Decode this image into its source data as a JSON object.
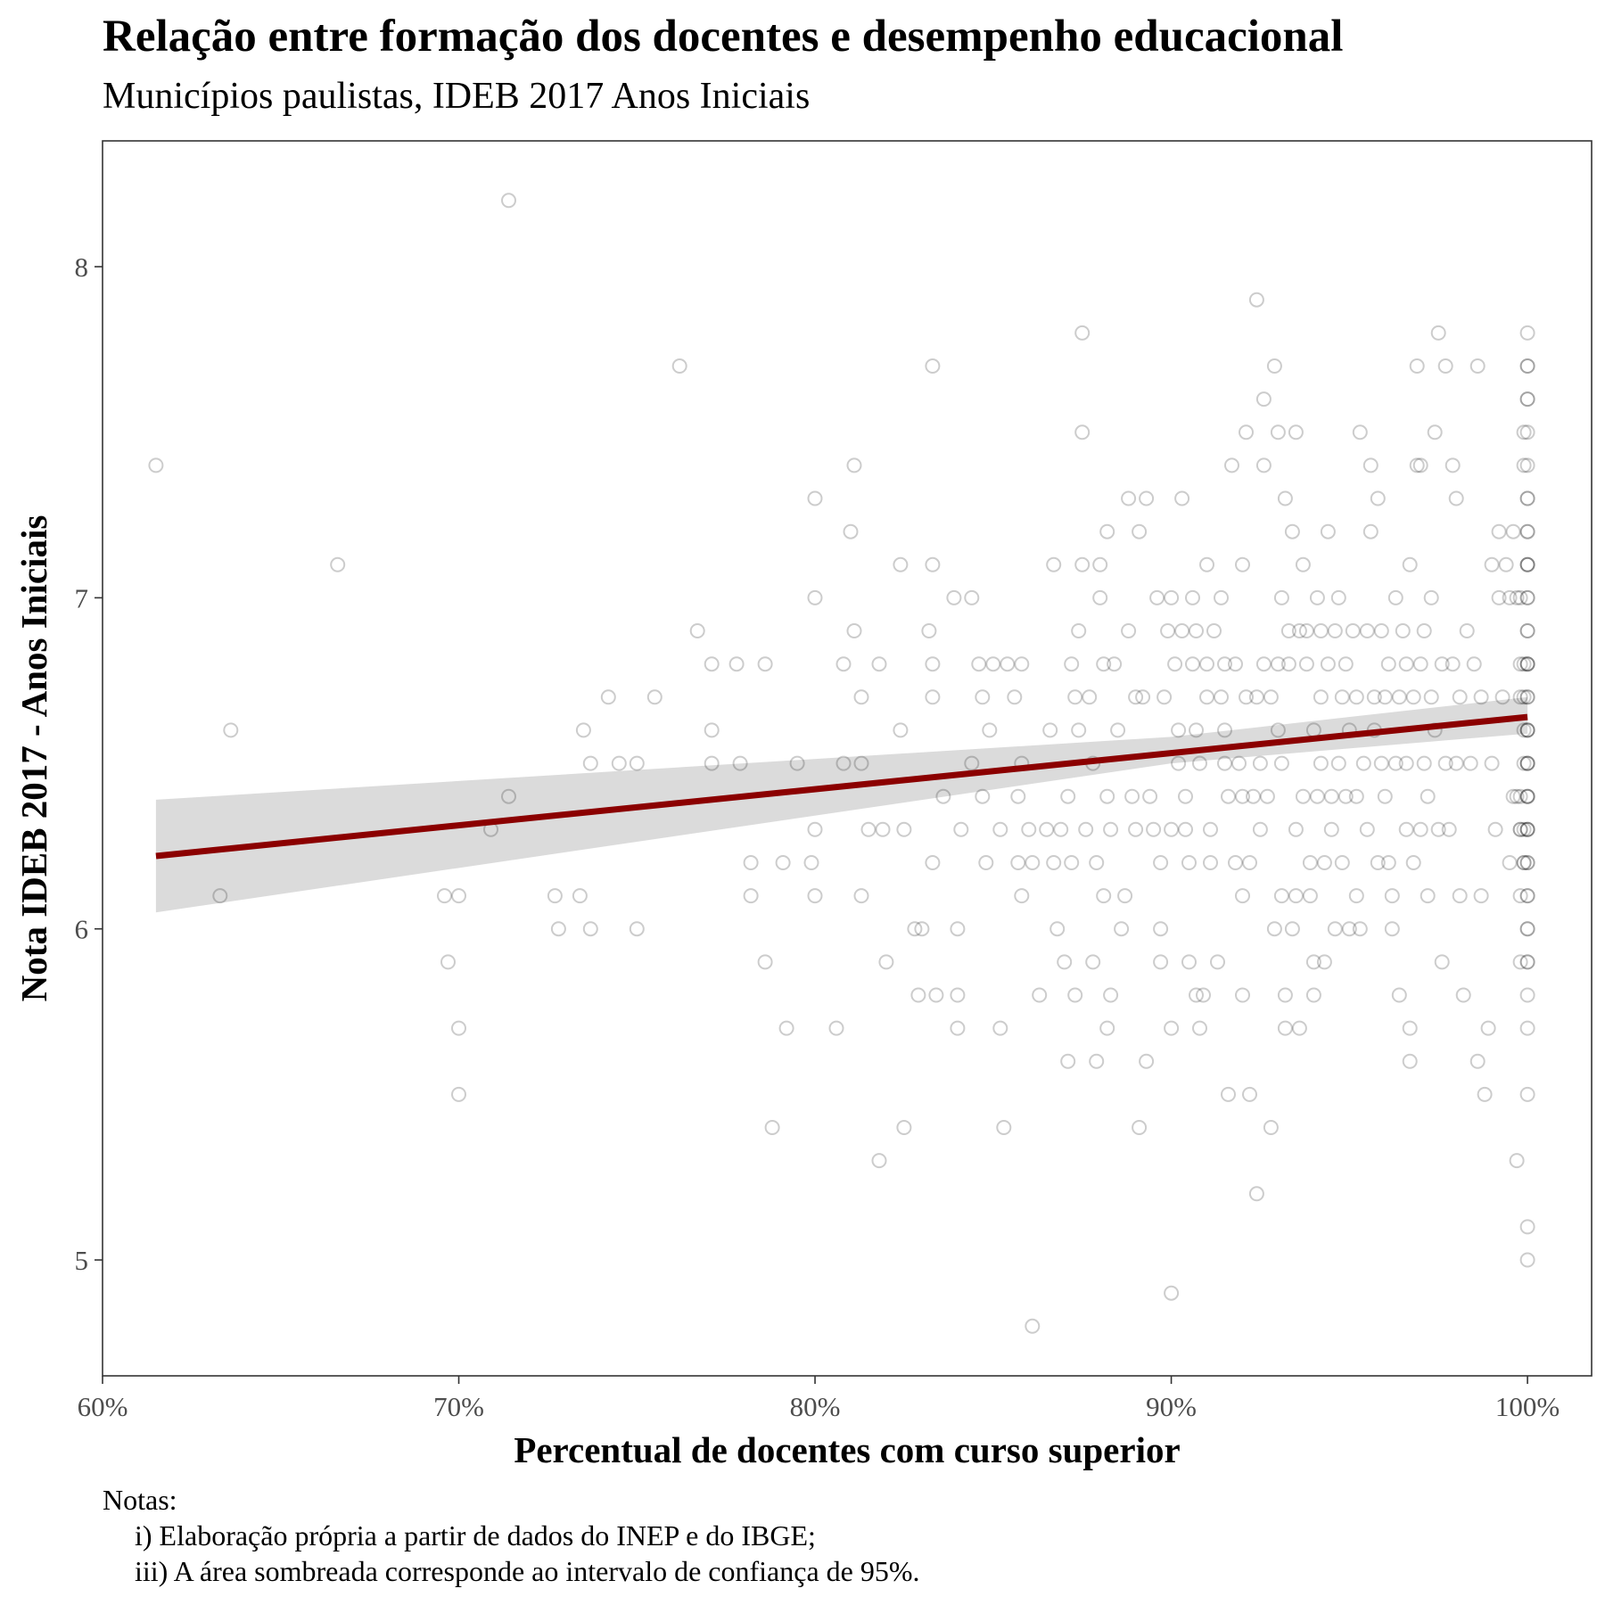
{
  "chart_data": {
    "type": "scatter",
    "title": "Relação entre formação dos docentes e desempenho educacional",
    "subtitle": "Municípios paulistas, IDEB 2017 Anos Iniciais",
    "xlabel": "Percentual de docentes com curso superior",
    "ylabel": "Nota IDEB 2017 - Anos Iniciais",
    "xlim": [
      0.6,
      1.018
    ],
    "ylim": [
      4.65,
      8.38
    ],
    "x_ticks": [
      0.6,
      0.7,
      0.8,
      0.9,
      1.0
    ],
    "x_tick_labels": [
      "60%",
      "70%",
      "80%",
      "90%",
      "100%"
    ],
    "y_ticks": [
      5,
      6,
      7,
      8
    ],
    "y_tick_labels": [
      "5",
      "6",
      "7",
      "8"
    ],
    "grid": false,
    "legend": "none",
    "point_style": "hollow circle, grey, semi-transparent",
    "points": [
      [
        0.615,
        7.4
      ],
      [
        0.633,
        6.1
      ],
      [
        0.636,
        6.6
      ],
      [
        0.666,
        7.1
      ],
      [
        0.714,
        8.2
      ],
      [
        0.714,
        6.4
      ],
      [
        0.709,
        6.3
      ],
      [
        0.696,
        6.1
      ],
      [
        0.7,
        6.1
      ],
      [
        0.697,
        5.9
      ],
      [
        0.7,
        5.7
      ],
      [
        0.7,
        5.5
      ],
      [
        0.727,
        6.1
      ],
      [
        0.728,
        6.0
      ],
      [
        0.734,
        6.1
      ],
      [
        0.735,
        6.6
      ],
      [
        0.737,
        6.5
      ],
      [
        0.737,
        6.0
      ],
      [
        0.742,
        6.7
      ],
      [
        0.745,
        6.5
      ],
      [
        0.75,
        6.5
      ],
      [
        0.75,
        6.0
      ],
      [
        0.755,
        6.7
      ],
      [
        0.762,
        7.7
      ],
      [
        0.767,
        6.9
      ],
      [
        0.771,
        6.8
      ],
      [
        0.771,
        6.6
      ],
      [
        0.771,
        6.5
      ],
      [
        0.778,
        6.8
      ],
      [
        0.779,
        6.5
      ],
      [
        0.782,
        6.2
      ],
      [
        0.782,
        6.1
      ],
      [
        0.786,
        5.9
      ],
      [
        0.786,
        6.8
      ],
      [
        0.788,
        5.4
      ],
      [
        0.791,
        6.2
      ],
      [
        0.792,
        5.7
      ],
      [
        0.795,
        6.5
      ],
      [
        0.799,
        6.2
      ],
      [
        0.8,
        7.3
      ],
      [
        0.8,
        7.0
      ],
      [
        0.8,
        6.3
      ],
      [
        0.8,
        6.1
      ],
      [
        0.806,
        5.7
      ],
      [
        0.808,
        6.8
      ],
      [
        0.808,
        6.5
      ],
      [
        0.81,
        7.2
      ],
      [
        0.811,
        7.4
      ],
      [
        0.811,
        6.9
      ],
      [
        0.813,
        6.7
      ],
      [
        0.813,
        6.5
      ],
      [
        0.813,
        6.1
      ],
      [
        0.815,
        6.3
      ],
      [
        0.818,
        5.3
      ],
      [
        0.818,
        6.8
      ],
      [
        0.819,
        6.3
      ],
      [
        0.82,
        5.9
      ],
      [
        0.824,
        7.1
      ],
      [
        0.824,
        6.6
      ],
      [
        0.825,
        6.3
      ],
      [
        0.825,
        5.4
      ],
      [
        0.828,
        6.0
      ],
      [
        0.829,
        5.8
      ],
      [
        0.83,
        6.0
      ],
      [
        0.832,
        6.9
      ],
      [
        0.833,
        6.8
      ],
      [
        0.833,
        7.7
      ],
      [
        0.833,
        7.1
      ],
      [
        0.833,
        6.7
      ],
      [
        0.833,
        6.2
      ],
      [
        0.834,
        5.8
      ],
      [
        0.836,
        6.4
      ],
      [
        0.839,
        7.0
      ],
      [
        0.84,
        6.0
      ],
      [
        0.84,
        5.8
      ],
      [
        0.84,
        5.7
      ],
      [
        0.841,
        6.3
      ],
      [
        0.844,
        7.0
      ],
      [
        0.844,
        6.5
      ],
      [
        0.846,
        6.8
      ],
      [
        0.847,
        6.7
      ],
      [
        0.847,
        6.4
      ],
      [
        0.848,
        6.2
      ],
      [
        0.849,
        6.6
      ],
      [
        0.85,
        6.8
      ],
      [
        0.852,
        6.3
      ],
      [
        0.852,
        5.7
      ],
      [
        0.853,
        5.4
      ],
      [
        0.854,
        6.8
      ],
      [
        0.856,
        6.7
      ],
      [
        0.857,
        6.4
      ],
      [
        0.857,
        6.2
      ],
      [
        0.858,
        6.1
      ],
      [
        0.858,
        6.5
      ],
      [
        0.858,
        6.8
      ],
      [
        0.86,
        6.3
      ],
      [
        0.861,
        6.2
      ],
      [
        0.861,
        4.8
      ],
      [
        0.863,
        5.8
      ],
      [
        0.865,
        6.3
      ],
      [
        0.866,
        6.6
      ],
      [
        0.867,
        6.2
      ],
      [
        0.867,
        7.1
      ],
      [
        0.868,
        6.0
      ],
      [
        0.869,
        6.3
      ],
      [
        0.87,
        5.9
      ],
      [
        0.871,
        6.4
      ],
      [
        0.871,
        5.6
      ],
      [
        0.872,
        6.2
      ],
      [
        0.872,
        6.8
      ],
      [
        0.873,
        6.7
      ],
      [
        0.873,
        5.8
      ],
      [
        0.874,
        6.6
      ],
      [
        0.874,
        6.9
      ],
      [
        0.875,
        7.8
      ],
      [
        0.875,
        7.5
      ],
      [
        0.875,
        7.1
      ],
      [
        0.876,
        6.3
      ],
      [
        0.877,
        6.7
      ],
      [
        0.878,
        6.5
      ],
      [
        0.878,
        5.9
      ],
      [
        0.879,
        5.6
      ],
      [
        0.879,
        6.2
      ],
      [
        0.88,
        7.1
      ],
      [
        0.88,
        7.0
      ],
      [
        0.881,
        6.8
      ],
      [
        0.881,
        6.1
      ],
      [
        0.882,
        5.7
      ],
      [
        0.882,
        6.4
      ],
      [
        0.882,
        7.2
      ],
      [
        0.883,
        6.3
      ],
      [
        0.883,
        5.8
      ],
      [
        0.884,
        6.8
      ],
      [
        0.885,
        6.6
      ],
      [
        0.886,
        6.0
      ],
      [
        0.887,
        6.1
      ],
      [
        0.888,
        7.3
      ],
      [
        0.888,
        6.9
      ],
      [
        0.889,
        6.4
      ],
      [
        0.89,
        6.7
      ],
      [
        0.89,
        6.3
      ],
      [
        0.891,
        5.4
      ],
      [
        0.891,
        7.2
      ],
      [
        0.892,
        6.7
      ],
      [
        0.893,
        7.3
      ],
      [
        0.893,
        5.6
      ],
      [
        0.894,
        6.4
      ],
      [
        0.895,
        6.3
      ],
      [
        0.896,
        7.0
      ],
      [
        0.897,
        6.2
      ],
      [
        0.897,
        5.9
      ],
      [
        0.897,
        6.0
      ],
      [
        0.898,
        6.7
      ],
      [
        0.899,
        6.9
      ],
      [
        0.9,
        7.0
      ],
      [
        0.9,
        6.3
      ],
      [
        0.9,
        5.7
      ],
      [
        0.9,
        4.9
      ],
      [
        0.901,
        6.8
      ],
      [
        0.902,
        6.6
      ],
      [
        0.902,
        6.5
      ],
      [
        0.903,
        6.9
      ],
      [
        0.903,
        7.3
      ],
      [
        0.904,
        6.3
      ],
      [
        0.904,
        6.4
      ],
      [
        0.905,
        6.2
      ],
      [
        0.905,
        5.9
      ],
      [
        0.906,
        6.8
      ],
      [
        0.906,
        7.0
      ],
      [
        0.907,
        6.9
      ],
      [
        0.907,
        6.6
      ],
      [
        0.907,
        5.8
      ],
      [
        0.908,
        5.7
      ],
      [
        0.908,
        6.5
      ],
      [
        0.909,
        5.8
      ],
      [
        0.91,
        6.8
      ],
      [
        0.91,
        6.7
      ],
      [
        0.91,
        7.1
      ],
      [
        0.911,
        6.3
      ],
      [
        0.911,
        6.2
      ],
      [
        0.912,
        6.9
      ],
      [
        0.913,
        5.9
      ],
      [
        0.914,
        6.7
      ],
      [
        0.914,
        7.0
      ],
      [
        0.915,
        6.5
      ],
      [
        0.915,
        6.8
      ],
      [
        0.915,
        6.6
      ],
      [
        0.916,
        5.5
      ],
      [
        0.916,
        6.4
      ],
      [
        0.917,
        7.4
      ],
      [
        0.918,
        6.2
      ],
      [
        0.918,
        6.8
      ],
      [
        0.919,
        6.5
      ],
      [
        0.92,
        6.1
      ],
      [
        0.92,
        6.4
      ],
      [
        0.92,
        7.1
      ],
      [
        0.92,
        5.8
      ],
      [
        0.921,
        6.7
      ],
      [
        0.921,
        7.5
      ],
      [
        0.922,
        6.2
      ],
      [
        0.922,
        5.5
      ],
      [
        0.923,
        6.4
      ],
      [
        0.924,
        6.7
      ],
      [
        0.924,
        7.9
      ],
      [
        0.924,
        5.2
      ],
      [
        0.925,
        6.5
      ],
      [
        0.925,
        6.3
      ],
      [
        0.926,
        7.6
      ],
      [
        0.926,
        7.4
      ],
      [
        0.926,
        6.8
      ],
      [
        0.927,
        6.4
      ],
      [
        0.928,
        6.7
      ],
      [
        0.928,
        5.4
      ],
      [
        0.929,
        7.7
      ],
      [
        0.929,
        6.0
      ],
      [
        0.93,
        6.8
      ],
      [
        0.93,
        7.5
      ],
      [
        0.93,
        6.6
      ],
      [
        0.931,
        7.0
      ],
      [
        0.931,
        6.5
      ],
      [
        0.931,
        6.1
      ],
      [
        0.932,
        7.3
      ],
      [
        0.932,
        5.8
      ],
      [
        0.932,
        5.7
      ],
      [
        0.933,
        6.8
      ],
      [
        0.933,
        6.9
      ],
      [
        0.934,
        6.0
      ],
      [
        0.934,
        7.2
      ],
      [
        0.935,
        7.5
      ],
      [
        0.935,
        6.1
      ],
      [
        0.935,
        6.3
      ],
      [
        0.936,
        6.9
      ],
      [
        0.936,
        5.7
      ],
      [
        0.937,
        7.1
      ],
      [
        0.937,
        6.4
      ],
      [
        0.938,
        6.8
      ],
      [
        0.938,
        6.9
      ],
      [
        0.939,
        6.2
      ],
      [
        0.939,
        6.1
      ],
      [
        0.94,
        5.9
      ],
      [
        0.94,
        6.6
      ],
      [
        0.94,
        5.8
      ],
      [
        0.941,
        7.0
      ],
      [
        0.941,
        6.4
      ],
      [
        0.942,
        6.7
      ],
      [
        0.942,
        6.9
      ],
      [
        0.942,
        6.5
      ],
      [
        0.943,
        6.2
      ],
      [
        0.943,
        5.9
      ],
      [
        0.944,
        7.2
      ],
      [
        0.944,
        6.8
      ],
      [
        0.945,
        6.4
      ],
      [
        0.945,
        6.3
      ],
      [
        0.946,
        6.9
      ],
      [
        0.946,
        6.0
      ],
      [
        0.947,
        7.0
      ],
      [
        0.947,
        6.5
      ],
      [
        0.948,
        6.7
      ],
      [
        0.948,
        6.2
      ],
      [
        0.949,
        6.4
      ],
      [
        0.949,
        6.8
      ],
      [
        0.95,
        6.0
      ],
      [
        0.95,
        6.6
      ],
      [
        0.951,
        6.9
      ],
      [
        0.952,
        6.1
      ],
      [
        0.952,
        6.4
      ],
      [
        0.952,
        6.7
      ],
      [
        0.953,
        7.5
      ],
      [
        0.953,
        6.0
      ],
      [
        0.954,
        6.5
      ],
      [
        0.955,
        6.9
      ],
      [
        0.955,
        6.3
      ],
      [
        0.956,
        7.4
      ],
      [
        0.956,
        7.2
      ],
      [
        0.957,
        6.6
      ],
      [
        0.957,
        6.7
      ],
      [
        0.958,
        6.2
      ],
      [
        0.958,
        7.3
      ],
      [
        0.959,
        6.5
      ],
      [
        0.959,
        6.9
      ],
      [
        0.96,
        6.4
      ],
      [
        0.96,
        6.7
      ],
      [
        0.961,
        6.2
      ],
      [
        0.961,
        6.8
      ],
      [
        0.962,
        6.0
      ],
      [
        0.962,
        6.1
      ],
      [
        0.963,
        6.5
      ],
      [
        0.963,
        7.0
      ],
      [
        0.964,
        5.8
      ],
      [
        0.964,
        6.7
      ],
      [
        0.965,
        6.9
      ],
      [
        0.966,
        6.3
      ],
      [
        0.966,
        6.5
      ],
      [
        0.966,
        6.8
      ],
      [
        0.967,
        7.1
      ],
      [
        0.967,
        5.7
      ],
      [
        0.967,
        5.6
      ],
      [
        0.968,
        6.2
      ],
      [
        0.968,
        6.7
      ],
      [
        0.969,
        7.4
      ],
      [
        0.969,
        7.7
      ],
      [
        0.97,
        6.8
      ],
      [
        0.97,
        7.4
      ],
      [
        0.97,
        6.3
      ],
      [
        0.971,
        6.9
      ],
      [
        0.971,
        6.5
      ],
      [
        0.972,
        6.1
      ],
      [
        0.972,
        6.4
      ],
      [
        0.973,
        7.0
      ],
      [
        0.973,
        6.7
      ],
      [
        0.974,
        7.5
      ],
      [
        0.974,
        6.6
      ],
      [
        0.975,
        6.3
      ],
      [
        0.975,
        7.8
      ],
      [
        0.976,
        6.8
      ],
      [
        0.976,
        5.9
      ],
      [
        0.977,
        6.5
      ],
      [
        0.977,
        7.7
      ],
      [
        0.978,
        6.3
      ],
      [
        0.979,
        7.4
      ],
      [
        0.979,
        6.8
      ],
      [
        0.98,
        6.5
      ],
      [
        0.98,
        7.3
      ],
      [
        0.981,
        6.7
      ],
      [
        0.981,
        6.1
      ],
      [
        0.982,
        5.8
      ],
      [
        0.983,
        6.9
      ],
      [
        0.984,
        6.5
      ],
      [
        0.985,
        6.8
      ],
      [
        0.986,
        7.7
      ],
      [
        0.986,
        5.6
      ],
      [
        0.987,
        6.7
      ],
      [
        0.987,
        6.1
      ],
      [
        0.988,
        5.5
      ],
      [
        0.989,
        5.7
      ],
      [
        0.99,
        6.5
      ],
      [
        0.99,
        7.1
      ],
      [
        0.991,
        6.3
      ],
      [
        0.992,
        7.0
      ],
      [
        0.992,
        7.2
      ],
      [
        0.993,
        6.7
      ],
      [
        0.994,
        7.1
      ],
      [
        0.995,
        7.0
      ],
      [
        0.995,
        6.2
      ],
      [
        0.996,
        6.4
      ],
      [
        0.996,
        7.2
      ],
      [
        0.997,
        5.3
      ],
      [
        0.997,
        7.0
      ],
      [
        0.998,
        6.4
      ],
      [
        0.998,
        6.3
      ],
      [
        0.999,
        6.7
      ],
      [
        0.999,
        6.2
      ],
      [
        0.998,
        7.0
      ],
      [
        0.997,
        6.4
      ],
      [
        0.998,
        6.8
      ],
      [
        0.998,
        5.9
      ],
      [
        0.999,
        6.3
      ],
      [
        0.999,
        7.4
      ],
      [
        0.999,
        6.2
      ],
      [
        0.999,
        6.8
      ],
      [
        0.998,
        6.7
      ],
      [
        0.999,
        7.5
      ],
      [
        0.999,
        6.5
      ],
      [
        0.998,
        6.1
      ],
      [
        0.998,
        6.3
      ],
      [
        0.999,
        6.6
      ],
      [
        1.0,
        7.8
      ],
      [
        1.0,
        7.7
      ],
      [
        1.0,
        7.6
      ],
      [
        1.0,
        7.5
      ],
      [
        1.0,
        7.4
      ],
      [
        1.0,
        7.3
      ],
      [
        1.0,
        7.2
      ],
      [
        1.0,
        7.1
      ],
      [
        1.0,
        7.0
      ],
      [
        1.0,
        6.9
      ],
      [
        1.0,
        6.8
      ],
      [
        1.0,
        6.7
      ],
      [
        1.0,
        6.6
      ],
      [
        1.0,
        6.5
      ],
      [
        1.0,
        6.4
      ],
      [
        1.0,
        6.3
      ],
      [
        1.0,
        6.2
      ],
      [
        1.0,
        6.1
      ],
      [
        1.0,
        6.0
      ],
      [
        1.0,
        5.9
      ],
      [
        1.0,
        5.8
      ],
      [
        1.0,
        5.7
      ],
      [
        1.0,
        5.5
      ],
      [
        1.0,
        5.1
      ],
      [
        1.0,
        5.0
      ],
      [
        1.0,
        7.7
      ],
      [
        1.0,
        7.6
      ],
      [
        1.0,
        7.3
      ],
      [
        1.0,
        7.2
      ],
      [
        1.0,
        7.1
      ],
      [
        1.0,
        7.0
      ],
      [
        1.0,
        6.9
      ],
      [
        1.0,
        6.8
      ],
      [
        1.0,
        6.7
      ],
      [
        1.0,
        6.6
      ],
      [
        1.0,
        6.5
      ],
      [
        1.0,
        6.4
      ],
      [
        1.0,
        6.3
      ],
      [
        1.0,
        6.2
      ],
      [
        1.0,
        6.1
      ],
      [
        1.0,
        6.0
      ],
      [
        1.0,
        5.9
      ],
      [
        1.0,
        6.6
      ],
      [
        1.0,
        6.8
      ],
      [
        1.0,
        6.5
      ],
      [
        1.0,
        6.4
      ],
      [
        1.0,
        7.1
      ],
      [
        1.0,
        6.3
      ]
    ],
    "trend_line": {
      "method": "linear regression",
      "color": "#8b0000",
      "x_start": 0.615,
      "y_start": 6.22,
      "x_end": 1.0,
      "y_end": 6.64
    },
    "confidence_band": {
      "level": "95%",
      "color": "#d9d9d9",
      "x": [
        0.615,
        0.9,
        1.0
      ],
      "lower": [
        6.05,
        6.5,
        6.59
      ],
      "upper": [
        6.39,
        6.58,
        6.7
      ]
    }
  },
  "notes": {
    "heading": "Notas:",
    "lines": [
      "i) Elaboração própria a partir de dados do INEP e do IBGE;",
      "iii) A área sombreada corresponde ao intervalo de confiança de 95%."
    ]
  }
}
